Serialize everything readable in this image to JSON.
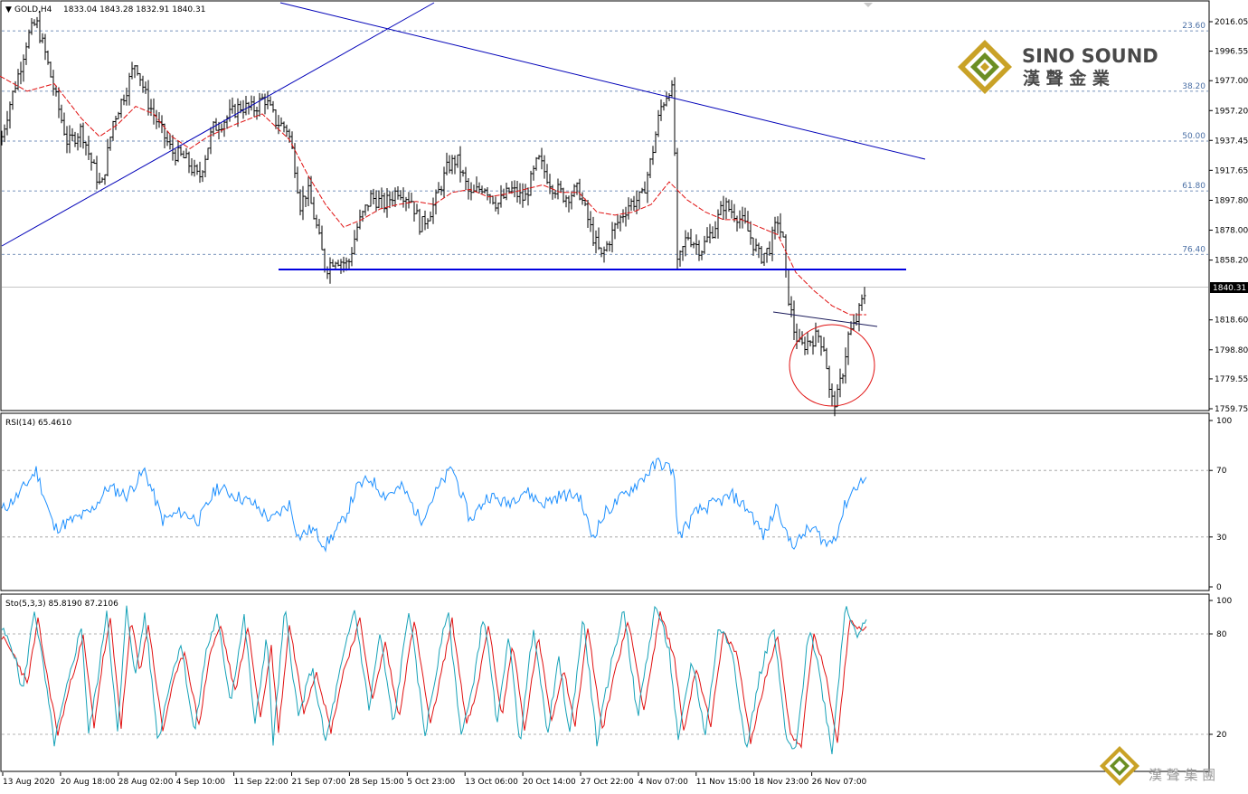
{
  "header": {
    "symbol_label": "GOLD,H4",
    "ohlc": "1833.04 1843.28 1832.91 1840.31",
    "current_price": "1840.31"
  },
  "watermark": {
    "brand_en": "SINO SOUND",
    "brand_zh": "漢 聲 金 業",
    "footer_zh": "漢 聲 集 團"
  },
  "colors": {
    "price_bars": "#000000",
    "ma": "#e01010",
    "trendline": "#0000b8",
    "support": "#0000e0",
    "fib": "#4a6fa5",
    "rsi": "#1e90ff",
    "stoch_main": "#17a2b8",
    "stoch_signal": "#e01010",
    "highlight_circle": "#e01010",
    "logo_gold": "#c9a227",
    "logo_green": "#6b8e23"
  },
  "chart_data": [
    {
      "type": "candlestick",
      "title": "GOLD,H4",
      "ylim": [
        1759.75,
        2016.05
      ],
      "y_ticks": [
        "2016.05",
        "1996.55",
        "1977.00",
        "1957.20",
        "1937.45",
        "1917.65",
        "1897.80",
        "1878.00",
        "1858.20",
        "1818.60",
        "1798.80",
        "1779.55",
        "1759.75"
      ],
      "x_ticks": [
        "13 Aug 2020",
        "20 Aug 18:00",
        "28 Aug 02:00",
        "4 Sep 10:00",
        "11 Sep 22:00",
        "21 Sep 07:00",
        "28 Sep 15:00",
        "5 Oct 23:00",
        "13 Oct 06:00",
        "20 Oct 14:00",
        "27 Oct 22:00",
        "4 Nov 07:00",
        "11 Nov 15:00",
        "18 Nov 23:00",
        "26 Nov 07:00"
      ],
      "fibonacci": [
        {
          "level": "23.60",
          "price": 2010
        },
        {
          "level": "38.20",
          "price": 1970
        },
        {
          "level": "50.00",
          "price": 1937
        },
        {
          "level": "61.80",
          "price": 1904
        },
        {
          "level": "76.40",
          "price": 1862
        }
      ],
      "support_level": 1852,
      "last_price": 1840.31,
      "price_path": [
        [
          0,
          1935
        ],
        [
          10,
          1960
        ],
        [
          22,
          1985
        ],
        [
          30,
          2005
        ],
        [
          40,
          2016
        ],
        [
          50,
          1995
        ],
        [
          62,
          1965
        ],
        [
          75,
          1935
        ],
        [
          90,
          1945
        ],
        [
          100,
          1925
        ],
        [
          112,
          1905
        ],
        [
          125,
          1950
        ],
        [
          140,
          1972
        ],
        [
          150,
          1990
        ],
        [
          162,
          1965
        ],
        [
          175,
          1948
        ],
        [
          190,
          1930
        ],
        [
          205,
          1925
        ],
        [
          220,
          1912
        ],
        [
          235,
          1945
        ],
        [
          250,
          1952
        ],
        [
          265,
          1960
        ],
        [
          280,
          1958
        ],
        [
          292,
          1966
        ],
        [
          305,
          1950
        ],
        [
          318,
          1945
        ],
        [
          325,
          1925
        ],
        [
          332,
          1895
        ],
        [
          340,
          1905
        ],
        [
          350,
          1880
        ],
        [
          360,
          1852
        ],
        [
          370,
          1860
        ],
        [
          385,
          1855
        ],
        [
          395,
          1880
        ],
        [
          410,
          1900
        ],
        [
          425,
          1895
        ],
        [
          440,
          1905
        ],
        [
          455,
          1898
        ],
        [
          465,
          1880
        ],
        [
          480,
          1895
        ],
        [
          495,
          1920
        ],
        [
          505,
          1925
        ],
        [
          520,
          1900
        ],
        [
          535,
          1908
        ],
        [
          550,
          1895
        ],
        [
          565,
          1905
        ],
        [
          580,
          1898
        ],
        [
          595,
          1925
        ],
        [
          610,
          1908
        ],
        [
          625,
          1900
        ],
        [
          640,
          1905
        ],
        [
          655,
          1875
        ],
        [
          665,
          1860
        ],
        [
          680,
          1880
        ],
        [
          695,
          1895
        ],
        [
          710,
          1900
        ],
        [
          720,
          1925
        ],
        [
          730,
          1958
        ],
        [
          740,
          1972
        ],
        [
          745,
          1968
        ],
        [
          748,
          1852
        ],
        [
          760,
          1875
        ],
        [
          775,
          1865
        ],
        [
          790,
          1880
        ],
        [
          800,
          1895
        ],
        [
          815,
          1888
        ],
        [
          825,
          1880
        ],
        [
          840,
          1860
        ],
        [
          850,
          1865
        ],
        [
          860,
          1885
        ],
        [
          866,
          1870
        ],
        [
          870,
          1840
        ],
        [
          878,
          1812
        ],
        [
          885,
          1800
        ],
        [
          895,
          1805
        ],
        [
          905,
          1808
        ],
        [
          912,
          1800
        ],
        [
          918,
          1765
        ],
        [
          925,
          1765
        ],
        [
          932,
          1785
        ],
        [
          938,
          1808
        ],
        [
          945,
          1815
        ],
        [
          952,
          1828
        ],
        [
          958,
          1840
        ]
      ],
      "moving_average_path": [
        [
          0,
          1980
        ],
        [
          30,
          1970
        ],
        [
          60,
          1975
        ],
        [
          90,
          1952
        ],
        [
          110,
          1940
        ],
        [
          130,
          1948
        ],
        [
          150,
          1960
        ],
        [
          170,
          1955
        ],
        [
          190,
          1940
        ],
        [
          210,
          1932
        ],
        [
          230,
          1940
        ],
        [
          260,
          1948
        ],
        [
          290,
          1955
        ],
        [
          320,
          1938
        ],
        [
          340,
          1915
        ],
        [
          360,
          1895
        ],
        [
          380,
          1880
        ],
        [
          400,
          1885
        ],
        [
          420,
          1892
        ],
        [
          440,
          1895
        ],
        [
          460,
          1897
        ],
        [
          480,
          1895
        ],
        [
          500,
          1903
        ],
        [
          520,
          1905
        ],
        [
          540,
          1900
        ],
        [
          560,
          1902
        ],
        [
          580,
          1905
        ],
        [
          600,
          1908
        ],
        [
          620,
          1903
        ],
        [
          640,
          1903
        ],
        [
          660,
          1890
        ],
        [
          680,
          1888
        ],
        [
          700,
          1890
        ],
        [
          720,
          1895
        ],
        [
          740,
          1910
        ],
        [
          760,
          1898
        ],
        [
          780,
          1890
        ],
        [
          800,
          1885
        ],
        [
          820,
          1885
        ],
        [
          840,
          1880
        ],
        [
          860,
          1875
        ],
        [
          880,
          1850
        ],
        [
          900,
          1838
        ],
        [
          920,
          1828
        ],
        [
          940,
          1822
        ],
        [
          958,
          1822
        ]
      ]
    },
    {
      "type": "line",
      "title": "RSI(14) 65.4610",
      "ylim": [
        0,
        100
      ],
      "y_ticks": [
        "100",
        "70",
        "30",
        "0"
      ],
      "levels": [
        70,
        30
      ],
      "values_path": [
        [
          0,
          45
        ],
        [
          20,
          55
        ],
        [
          40,
          70
        ],
        [
          60,
          35
        ],
        [
          80,
          40
        ],
        [
          100,
          45
        ],
        [
          120,
          60
        ],
        [
          140,
          55
        ],
        [
          160,
          70
        ],
        [
          180,
          40
        ],
        [
          200,
          45
        ],
        [
          220,
          40
        ],
        [
          240,
          60
        ],
        [
          260,
          55
        ],
        [
          280,
          50
        ],
        [
          300,
          40
        ],
        [
          320,
          50
        ],
        [
          330,
          30
        ],
        [
          345,
          35
        ],
        [
          360,
          25
        ],
        [
          380,
          40
        ],
        [
          395,
          60
        ],
        [
          410,
          65
        ],
        [
          425,
          55
        ],
        [
          445,
          60
        ],
        [
          465,
          40
        ],
        [
          480,
          55
        ],
        [
          500,
          72
        ],
        [
          520,
          40
        ],
        [
          540,
          55
        ],
        [
          560,
          50
        ],
        [
          580,
          58
        ],
        [
          600,
          50
        ],
        [
          620,
          55
        ],
        [
          640,
          55
        ],
        [
          655,
          30
        ],
        [
          670,
          45
        ],
        [
          690,
          55
        ],
        [
          710,
          65
        ],
        [
          728,
          75
        ],
        [
          745,
          70
        ],
        [
          750,
          30
        ],
        [
          770,
          45
        ],
        [
          790,
          50
        ],
        [
          810,
          55
        ],
        [
          830,
          45
        ],
        [
          845,
          30
        ],
        [
          860,
          50
        ],
        [
          870,
          30
        ],
        [
          880,
          25
        ],
        [
          890,
          33
        ],
        [
          900,
          35
        ],
        [
          915,
          25
        ],
        [
          925,
          32
        ],
        [
          935,
          50
        ],
        [
          945,
          60
        ],
        [
          958,
          65.5
        ]
      ]
    },
    {
      "type": "line",
      "title": "Sto(5,3,3) 85.8190 87.2106",
      "ylim": [
        0,
        100
      ],
      "y_ticks": [
        "100",
        "80",
        "20"
      ],
      "levels": [
        80,
        20
      ],
      "main_values_path": [
        [
          0,
          85
        ],
        [
          15,
          70
        ],
        [
          25,
          45
        ],
        [
          38,
          95
        ],
        [
          48,
          60
        ],
        [
          60,
          15
        ],
        [
          75,
          50
        ],
        [
          90,
          85
        ],
        [
          98,
          20
        ],
        [
          110,
          60
        ],
        [
          118,
          95
        ],
        [
          130,
          20
        ],
        [
          140,
          95
        ],
        [
          150,
          55
        ],
        [
          160,
          92
        ],
        [
          175,
          15
        ],
        [
          185,
          45
        ],
        [
          200,
          75
        ],
        [
          215,
          20
        ],
        [
          228,
          70
        ],
        [
          240,
          90
        ],
        [
          255,
          40
        ],
        [
          270,
          90
        ],
        [
          282,
          25
        ],
        [
          295,
          80
        ],
        [
          302,
          15
        ],
        [
          315,
          95
        ],
        [
          330,
          30
        ],
        [
          345,
          60
        ],
        [
          360,
          15
        ],
        [
          375,
          55
        ],
        [
          392,
          95
        ],
        [
          408,
          35
        ],
        [
          420,
          80
        ],
        [
          435,
          25
        ],
        [
          452,
          95
        ],
        [
          470,
          20
        ],
        [
          495,
          95
        ],
        [
          510,
          20
        ],
        [
          520,
          40
        ],
        [
          535,
          92
        ],
        [
          550,
          25
        ],
        [
          562,
          80
        ],
        [
          575,
          15
        ],
        [
          590,
          85
        ],
        [
          605,
          20
        ],
        [
          618,
          65
        ],
        [
          630,
          20
        ],
        [
          645,
          90
        ],
        [
          660,
          15
        ],
        [
          675,
          60
        ],
        [
          690,
          95
        ],
        [
          705,
          30
        ],
        [
          725,
          98
        ],
        [
          740,
          70
        ],
        [
          750,
          15
        ],
        [
          765,
          65
        ],
        [
          780,
          20
        ],
        [
          795,
          85
        ],
        [
          810,
          70
        ],
        [
          825,
          10
        ],
        [
          840,
          55
        ],
        [
          855,
          85
        ],
        [
          870,
          15
        ],
        [
          880,
          10
        ],
        [
          895,
          85
        ],
        [
          905,
          60
        ],
        [
          920,
          10
        ],
        [
          935,
          98
        ],
        [
          948,
          80
        ],
        [
          958,
          87
        ]
      ],
      "signal_values_path": [
        [
          0,
          80
        ],
        [
          18,
          65
        ],
        [
          30,
          50
        ],
        [
          42,
          88
        ],
        [
          52,
          55
        ],
        [
          64,
          20
        ],
        [
          80,
          55
        ],
        [
          92,
          78
        ],
        [
          104,
          25
        ],
        [
          114,
          65
        ],
        [
          122,
          88
        ],
        [
          134,
          25
        ],
        [
          145,
          88
        ],
        [
          155,
          58
        ],
        [
          164,
          86
        ],
        [
          180,
          22
        ],
        [
          190,
          48
        ],
        [
          204,
          70
        ],
        [
          220,
          25
        ],
        [
          232,
          68
        ],
        [
          244,
          85
        ],
        [
          260,
          45
        ],
        [
          274,
          84
        ],
        [
          288,
          30
        ],
        [
          300,
          72
        ],
        [
          308,
          22
        ],
        [
          320,
          86
        ],
        [
          336,
          34
        ],
        [
          350,
          58
        ],
        [
          366,
          22
        ],
        [
          380,
          58
        ],
        [
          398,
          88
        ],
        [
          412,
          40
        ],
        [
          426,
          75
        ],
        [
          441,
          30
        ],
        [
          458,
          88
        ],
        [
          476,
          25
        ],
        [
          500,
          88
        ],
        [
          516,
          26
        ],
        [
          526,
          42
        ],
        [
          540,
          86
        ],
        [
          555,
          30
        ],
        [
          567,
          75
        ],
        [
          580,
          22
        ],
        [
          595,
          78
        ],
        [
          610,
          28
        ],
        [
          623,
          60
        ],
        [
          636,
          25
        ],
        [
          650,
          84
        ],
        [
          666,
          22
        ],
        [
          680,
          58
        ],
        [
          695,
          88
        ],
        [
          712,
          35
        ],
        [
          730,
          92
        ],
        [
          745,
          68
        ],
        [
          756,
          22
        ],
        [
          770,
          60
        ],
        [
          786,
          26
        ],
        [
          800,
          80
        ],
        [
          815,
          68
        ],
        [
          830,
          16
        ],
        [
          846,
          52
        ],
        [
          860,
          80
        ],
        [
          874,
          20
        ],
        [
          886,
          14
        ],
        [
          900,
          80
        ],
        [
          912,
          58
        ],
        [
          926,
          16
        ],
        [
          940,
          90
        ],
        [
          952,
          82
        ],
        [
          958,
          86
        ]
      ]
    }
  ]
}
